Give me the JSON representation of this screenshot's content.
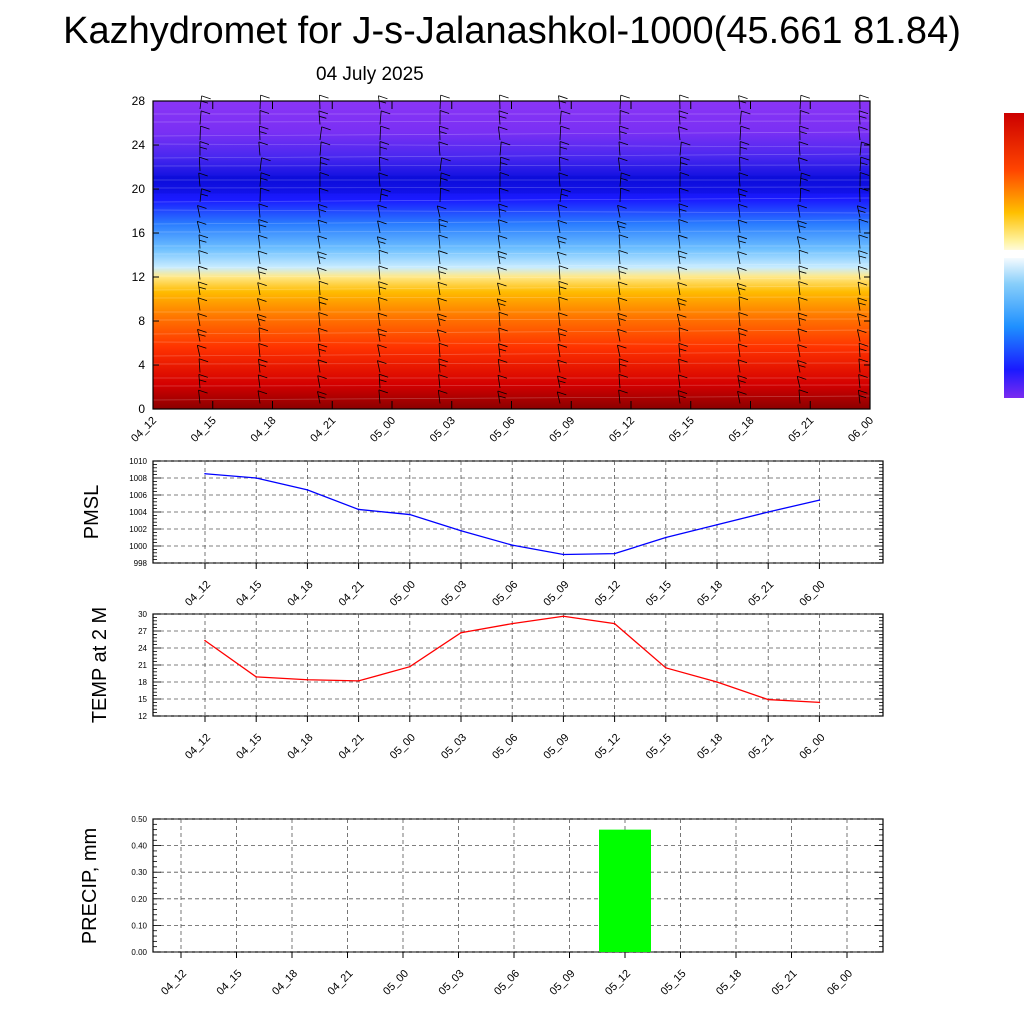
{
  "title": "Kazhydromet for J-s-Jalanashkol-1000(45.661 81.84)",
  "date": "04 July 2025",
  "times": [
    "04_12",
    "04_15",
    "04_18",
    "04_21",
    "05_00",
    "05_03",
    "05_06",
    "05_09",
    "05_12",
    "05_15",
    "05_18",
    "05_21",
    "06_00"
  ],
  "colors": {
    "pmsl_line": "#0000ff",
    "temp_line": "#ff0000",
    "precip_bar": "#00ff00",
    "grid": "#555555"
  },
  "chart_data": [
    {
      "type": "heatmap",
      "name": "cross-section",
      "x": [
        "04_12",
        "04_15",
        "04_18",
        "04_21",
        "05_00",
        "05_03",
        "05_06",
        "05_09",
        "05_12",
        "05_15",
        "05_18",
        "05_21",
        "06_00"
      ],
      "yticks": [
        "0",
        "4",
        "8",
        "12",
        "16",
        "20",
        "24",
        "28"
      ],
      "ylim": [
        0,
        28
      ],
      "colormap": [
        "#8b1a1a",
        "#e00000",
        "#ff4500",
        "#ff8c00",
        "#ffc000",
        "#fff3a0",
        "#87cefa",
        "#1e90ff",
        "#0000cd",
        "#3a1fd8",
        "#7b2bf0"
      ],
      "wind_barbs": true
    },
    {
      "type": "line",
      "name": "PMSL",
      "ylabel": "PMSL",
      "x": [
        "04_12",
        "04_15",
        "04_18",
        "04_21",
        "05_00",
        "05_03",
        "05_06",
        "05_09",
        "05_12",
        "05_15",
        "05_18",
        "05_21",
        "06_00"
      ],
      "values": [
        1008.5,
        1008.0,
        1006.6,
        1004.3,
        1003.7,
        1001.8,
        1000.1,
        999.0,
        999.1,
        1001.0,
        1002.5,
        1004.0,
        1005.4
      ],
      "ylim": [
        998,
        1010
      ],
      "yticks": [
        "998",
        "1000",
        "1002",
        "1004",
        "1006",
        "1008",
        "1010"
      ],
      "grid": true
    },
    {
      "type": "line",
      "name": "TEMP at 2 M",
      "ylabel": "TEMP at 2 M",
      "x": [
        "04_12",
        "04_15",
        "04_18",
        "04_21",
        "05_00",
        "05_03",
        "05_06",
        "05_09",
        "05_12",
        "05_15",
        "05_18",
        "05_21",
        "06_00"
      ],
      "values": [
        25.3,
        18.9,
        18.4,
        18.2,
        20.7,
        26.7,
        28.3,
        29.6,
        28.3,
        20.5,
        18.0,
        14.9,
        14.4
      ],
      "ylim": [
        12,
        30
      ],
      "yticks": [
        "12",
        "15",
        "18",
        "21",
        "24",
        "27",
        "30"
      ],
      "grid": true
    },
    {
      "type": "bar",
      "name": "PRECIP, mm",
      "ylabel": "PRECIP, mm",
      "categories": [
        "04_12",
        "04_15",
        "04_18",
        "04_21",
        "05_00",
        "05_03",
        "05_06",
        "05_09",
        "05_12",
        "05_15",
        "05_18",
        "05_21",
        "06_00"
      ],
      "values": [
        0,
        0,
        0,
        0,
        0,
        0,
        0,
        0,
        0.46,
        0,
        0,
        0,
        0
      ],
      "ylim": [
        0,
        0.5
      ],
      "yticks": [
        "0.00",
        "0.10",
        "0.20",
        "0.30",
        "0.40",
        "0.50"
      ],
      "grid": true
    }
  ]
}
